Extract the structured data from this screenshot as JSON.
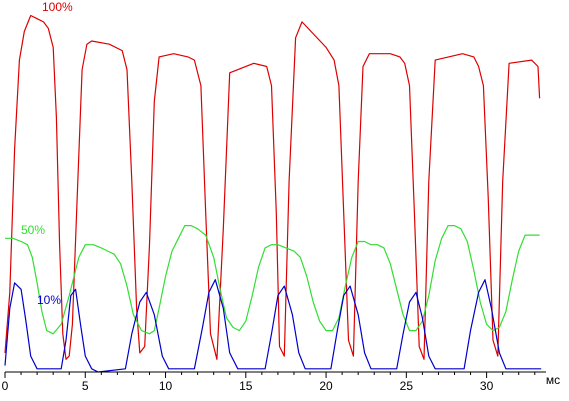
{
  "chart_data": {
    "type": "line",
    "title": "",
    "xlabel": "мс",
    "ylabel": "",
    "xlim": [
      0,
      33.7
    ],
    "ylim": [
      0,
      115
    ],
    "grid": false,
    "legend": "none",
    "x_ticks": [
      0,
      5,
      10,
      15,
      20,
      25,
      30
    ],
    "x_tick_labels": [
      "0",
      "5",
      "10",
      "15",
      "20",
      "25",
      "30"
    ],
    "series": [
      {
        "name": "100%",
        "color": "#dd0000",
        "x": [
          0,
          0.3,
          0.6,
          0.9,
          1.2,
          1.6,
          2.0,
          2.4,
          2.7,
          3.0,
          3.2,
          3.4,
          3.6,
          3.8,
          4.0,
          4.2,
          4.5,
          4.8,
          5.1,
          5.4,
          6.5,
          7.3,
          7.6,
          7.9,
          8.2,
          8.4,
          8.7,
          9.0,
          9.3,
          9.6,
          10.5,
          11.4,
          11.8,
          12.2,
          12.5,
          12.8,
          13.2,
          13.6,
          14.0,
          15.5,
          16.3,
          16.6,
          16.9,
          17.1,
          17.4,
          17.7,
          18.1,
          18.5,
          20.0,
          20.5,
          20.8,
          21.1,
          21.4,
          21.7,
          22.0,
          22.3,
          22.7,
          24.0,
          24.6,
          24.9,
          25.2,
          25.5,
          25.8,
          26.1,
          26.4,
          26.8,
          28.5,
          29.2,
          29.5,
          29.8,
          30.1,
          30.4,
          30.7,
          31.0,
          31.4,
          32.8,
          33.2,
          33.3
        ],
        "values": [
          6,
          25,
          70,
          98,
          107,
          112,
          111,
          110,
          108,
          102,
          80,
          40,
          12,
          4,
          5,
          15,
          55,
          95,
          103,
          104,
          103,
          101,
          95,
          60,
          20,
          6,
          8,
          40,
          85,
          99,
          100,
          99,
          98,
          90,
          50,
          12,
          4,
          45,
          94,
          97,
          96,
          90,
          50,
          8,
          5,
          60,
          105,
          110,
          102,
          98,
          90,
          50,
          10,
          5,
          60,
          96,
          100,
          100,
          99,
          97,
          90,
          50,
          8,
          4,
          60,
          98,
          100,
          99,
          96,
          90,
          55,
          10,
          5,
          60,
          97,
          98,
          96,
          86
        ]
      },
      {
        "name": "50%",
        "color": "#33dd33",
        "x": [
          0,
          0.5,
          1.0,
          1.4,
          1.7,
          2.0,
          2.3,
          2.6,
          3.0,
          3.5,
          4.0,
          4.6,
          5.0,
          5.5,
          6.0,
          6.4,
          6.8,
          7.2,
          7.6,
          8.0,
          8.5,
          9.0,
          9.3,
          9.6,
          10.0,
          10.4,
          10.8,
          11.2,
          11.6,
          12.0,
          12.5,
          13.0,
          13.4,
          13.8,
          14.2,
          14.6,
          15.0,
          15.4,
          15.8,
          16.2,
          16.6,
          17.0,
          17.5,
          18.0,
          18.4,
          18.8,
          19.2,
          19.6,
          20.0,
          20.4,
          20.8,
          21.2,
          21.6,
          22.0,
          22.4,
          22.8,
          23.2,
          23.6,
          24.0,
          24.4,
          24.8,
          25.2,
          25.6,
          26.0,
          26.4,
          26.8,
          27.2,
          27.6,
          28.0,
          28.4,
          28.8,
          29.2,
          29.6,
          30.0,
          30.4,
          30.8,
          31.2,
          31.6,
          32.0,
          32.4,
          32.8,
          33.3
        ],
        "values": [
          42,
          42,
          41,
          40,
          36,
          28,
          19,
          13,
          12,
          15,
          24,
          36,
          40,
          40,
          39,
          38,
          37,
          34,
          27,
          18,
          13,
          12,
          13,
          20,
          30,
          38,
          42,
          46,
          46,
          45,
          43,
          36,
          26,
          17,
          14,
          13,
          16,
          24,
          33,
          39,
          40,
          40,
          39,
          38,
          36,
          30,
          22,
          16,
          13,
          13,
          17,
          27,
          36,
          41,
          41,
          40,
          40,
          39,
          34,
          26,
          18,
          13,
          13,
          16,
          24,
          35,
          42,
          46,
          46,
          45,
          41,
          32,
          22,
          15,
          13,
          14,
          19,
          29,
          38,
          43,
          43,
          43
        ]
      },
      {
        "name": "10%",
        "color": "#0000cc",
        "x": [
          0,
          0.3,
          0.6,
          1.0,
          1.3,
          1.6,
          2.0,
          3.5,
          3.8,
          4.1,
          4.4,
          4.7,
          5.0,
          5.4,
          5.8,
          7.5,
          7.9,
          8.4,
          8.8,
          9.3,
          9.8,
          10.2,
          11.8,
          12.3,
          12.7,
          13.1,
          13.6,
          14.0,
          14.5,
          16.2,
          16.6,
          17.0,
          17.4,
          17.9,
          18.3,
          18.7,
          20.3,
          20.7,
          21.1,
          21.5,
          22.0,
          22.4,
          22.8,
          24.4,
          24.8,
          25.2,
          25.6,
          26.0,
          26.4,
          26.8,
          28.6,
          29.0,
          29.5,
          29.9,
          30.3,
          30.8,
          31.2,
          33.4
        ],
        "values": [
          2,
          20,
          28,
          26,
          16,
          5,
          1,
          1,
          10,
          24,
          26,
          15,
          5,
          1,
          0,
          1,
          12,
          22,
          25,
          18,
          5,
          1,
          1,
          14,
          25,
          29,
          20,
          6,
          1,
          1,
          12,
          24,
          27,
          18,
          6,
          1,
          1,
          13,
          24,
          27,
          18,
          6,
          1,
          1,
          12,
          22,
          25,
          17,
          5,
          1,
          1,
          13,
          25,
          29,
          20,
          6,
          1,
          1
        ]
      }
    ]
  }
}
